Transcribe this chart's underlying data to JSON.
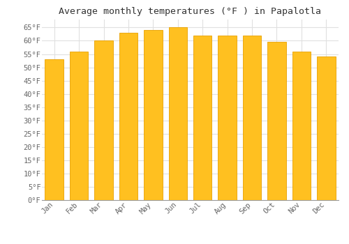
{
  "title": "Average monthly temperatures (°F ) in Papalotla",
  "months": [
    "Jan",
    "Feb",
    "Mar",
    "Apr",
    "May",
    "Jun",
    "Jul",
    "Aug",
    "Sep",
    "Oct",
    "Nov",
    "Dec"
  ],
  "values": [
    53,
    56,
    60,
    63,
    64,
    65,
    62,
    62,
    62,
    59.5,
    56,
    54
  ],
  "bar_color": "#FFC020",
  "bar_edge_color": "#E8A000",
  "ylim": [
    0,
    68
  ],
  "yticks": [
    0,
    5,
    10,
    15,
    20,
    25,
    30,
    35,
    40,
    45,
    50,
    55,
    60,
    65
  ],
  "ytick_labels": [
    "0°F",
    "5°F",
    "10°F",
    "15°F",
    "20°F",
    "25°F",
    "30°F",
    "35°F",
    "40°F",
    "45°F",
    "50°F",
    "55°F",
    "60°F",
    "65°F"
  ],
  "background_color": "#ffffff",
  "grid_color": "#e0e0e0",
  "title_fontsize": 9.5,
  "tick_fontsize": 7.5,
  "font_family": "monospace"
}
